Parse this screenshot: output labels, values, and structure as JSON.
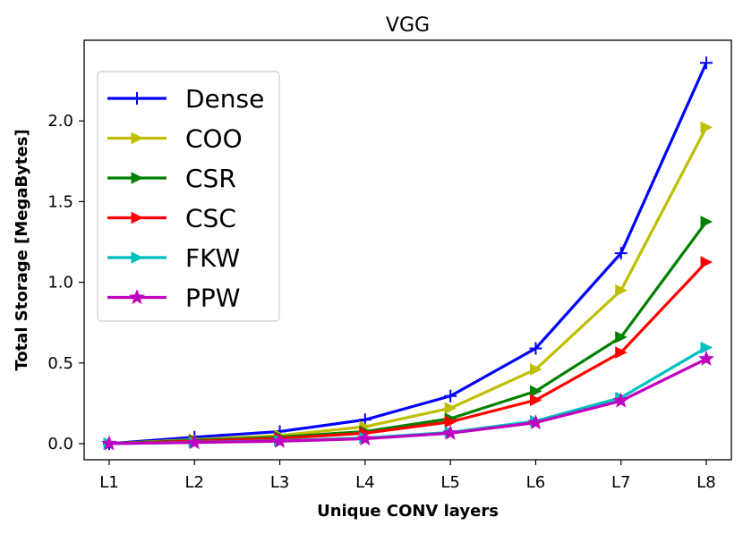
{
  "chart_data": {
    "type": "line",
    "title": "VGG",
    "xlabel": "Unique CONV layers",
    "ylabel": "Total Storage [MegaBytes]",
    "categories": [
      "L1",
      "L2",
      "L3",
      "L4",
      "L5",
      "L6",
      "L7",
      "L8"
    ],
    "ylim": [
      -0.1,
      2.5
    ],
    "yticks": [
      0.0,
      0.5,
      1.0,
      1.5,
      2.0
    ],
    "ytick_labels": [
      "0.0",
      "0.5",
      "1.0",
      "1.5",
      "2.0"
    ],
    "legend_position": "upper-left",
    "series": [
      {
        "name": "Dense",
        "color": "#0000ff",
        "marker": "plus",
        "values": [
          0.0,
          0.04,
          0.075,
          0.148,
          0.295,
          0.59,
          1.18,
          2.36
        ]
      },
      {
        "name": "COO",
        "color": "#bfbf00",
        "marker": "triangle-right",
        "values": [
          0.0,
          0.025,
          0.05,
          0.105,
          0.22,
          0.46,
          0.95,
          1.96
        ]
      },
      {
        "name": "CSR",
        "color": "#008000",
        "marker": "triangle-right",
        "values": [
          0.0,
          0.02,
          0.04,
          0.075,
          0.155,
          0.325,
          0.66,
          1.375
        ]
      },
      {
        "name": "CSC",
        "color": "#ff0000",
        "marker": "triangle-right",
        "values": [
          0.0,
          0.015,
          0.032,
          0.065,
          0.135,
          0.27,
          0.565,
          1.125
        ]
      },
      {
        "name": "FKW",
        "color": "#00bfbf",
        "marker": "triangle-right",
        "values": [
          0.0,
          0.008,
          0.018,
          0.035,
          0.07,
          0.14,
          0.285,
          0.595
        ]
      },
      {
        "name": "PPW",
        "color": "#bf00bf",
        "marker": "star",
        "values": [
          0.0,
          0.007,
          0.015,
          0.03,
          0.065,
          0.13,
          0.265,
          0.525
        ]
      }
    ]
  }
}
